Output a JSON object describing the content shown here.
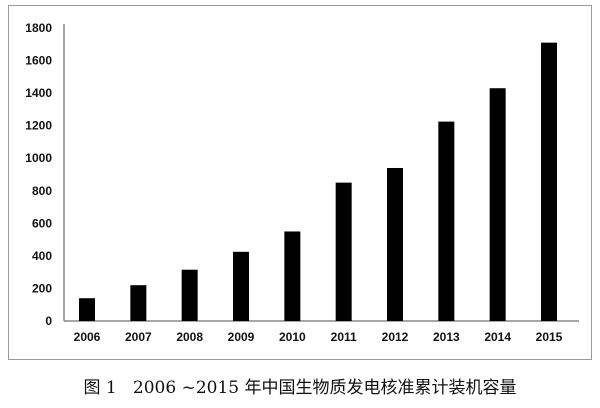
{
  "caption": {
    "figure_label": "图 1",
    "text": "2006 ~2015 年中国生物质发电核准累计装机容量"
  },
  "chart_data": {
    "type": "bar",
    "title": "",
    "xlabel": "",
    "ylabel": "",
    "categories": [
      "2006",
      "2007",
      "2008",
      "2009",
      "2010",
      "2011",
      "2012",
      "2013",
      "2014",
      "2015"
    ],
    "values": [
      140,
      220,
      315,
      425,
      550,
      850,
      940,
      1225,
      1430,
      1710
    ],
    "ylim": [
      0,
      1800
    ],
    "yticks": [
      0,
      200,
      400,
      600,
      800,
      1000,
      1200,
      1400,
      1600,
      1800
    ],
    "grid": false,
    "legend": "none",
    "bar_color": "#000000",
    "axis_color": "#888888"
  }
}
